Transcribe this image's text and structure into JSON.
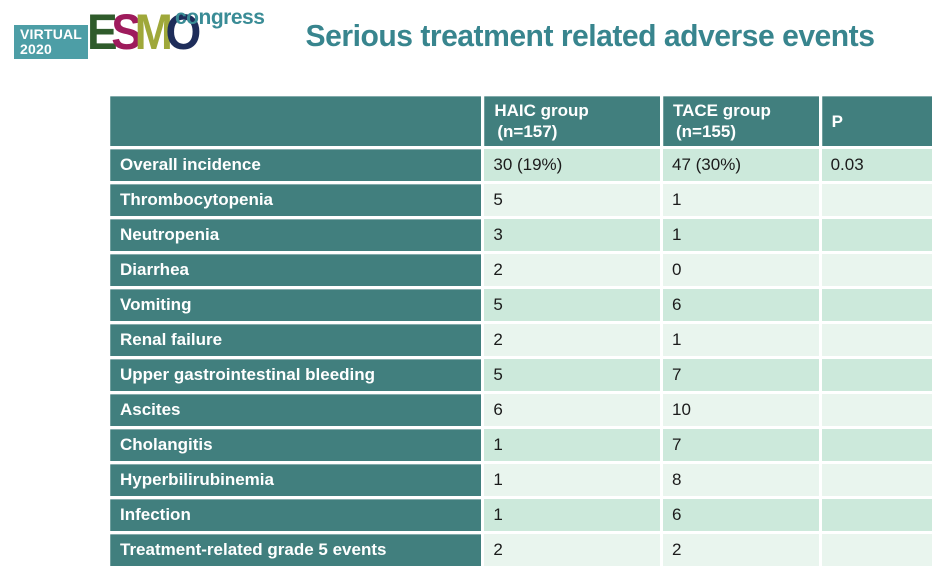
{
  "logo": {
    "virtual_line1": "VIRTUAL",
    "virtual_line2": "2020",
    "esmo_letters": [
      {
        "char": "E",
        "color": "#2F5B2B"
      },
      {
        "char": "S",
        "color": "#9E1B5C"
      },
      {
        "char": "M",
        "color": "#9FA83A"
      },
      {
        "char": "O",
        "color": "#1E2D5A"
      }
    ],
    "congress": "congress"
  },
  "title": "Serious treatment related adverse events",
  "colors": {
    "title_teal": "#38858E",
    "header_cell_teal": "#417F7E",
    "row_mint_dark": "#CCE9DB",
    "row_mint_light": "#E9F5EE",
    "logo_box_teal": "#4D9EA6"
  },
  "chart_data": {
    "type": "table",
    "title": "Serious treatment related adverse events",
    "columns": [
      {
        "line1": "",
        "line2": ""
      },
      {
        "line1": "HAIC group",
        "line2": "(n=157)"
      },
      {
        "line1": "TACE group",
        "line2": "(n=155)"
      },
      {
        "line1": "P",
        "line2": ""
      }
    ],
    "rows": [
      {
        "label": "Overall incidence",
        "values": [
          "30 (19%)",
          "47 (30%)",
          "0.03"
        ]
      },
      {
        "label": "Thrombocytopenia",
        "values": [
          "5",
          "1",
          ""
        ]
      },
      {
        "label": "Neutropenia",
        "values": [
          "3",
          "1",
          ""
        ]
      },
      {
        "label": "Diarrhea",
        "values": [
          "2",
          "0",
          ""
        ]
      },
      {
        "label": "Vomiting",
        "values": [
          "5",
          "6",
          ""
        ]
      },
      {
        "label": "Renal failure",
        "values": [
          "2",
          "1",
          ""
        ]
      },
      {
        "label": "Upper gastrointestinal bleeding",
        "values": [
          "5",
          "7",
          ""
        ]
      },
      {
        "label": "Ascites",
        "values": [
          "6",
          "10",
          ""
        ]
      },
      {
        "label": "Cholangitis",
        "values": [
          "1",
          "7",
          ""
        ]
      },
      {
        "label": "Hyperbilirubinemia",
        "values": [
          "1",
          "8",
          ""
        ]
      },
      {
        "label": "Infection",
        "values": [
          "1",
          "6",
          ""
        ]
      },
      {
        "label": "Treatment-related grade 5 events",
        "values": [
          "2",
          "2",
          ""
        ]
      }
    ]
  }
}
